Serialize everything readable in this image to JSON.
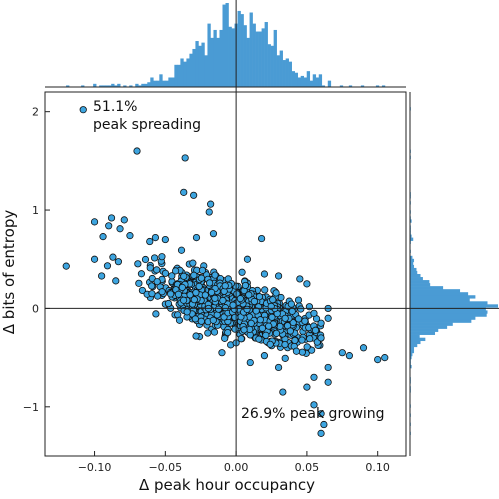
{
  "chart_data": {
    "type": "scatter",
    "xlabel": "Δ peak hour occupancy",
    "ylabel": "Δ bits of entropy",
    "xlim": [
      -0.135,
      0.12
    ],
    "ylim": [
      -1.5,
      2.2
    ],
    "xticks": [
      -0.1,
      -0.05,
      0.0,
      0.05,
      0.1
    ],
    "xtick_labels": [
      "−0.10",
      "−0.05",
      "0.00",
      "0.05",
      "0.10"
    ],
    "yticks": [
      -1,
      0,
      1,
      2
    ],
    "ytick_labels": [
      "−1",
      "0",
      "1",
      "2"
    ],
    "annotations": [
      {
        "lines": [
          "51.1%",
          "peak spreading"
        ]
      },
      {
        "lines": [
          "26.9% peak growing"
        ]
      }
    ],
    "grid": false,
    "reference_lines": {
      "x": 0,
      "y": 0
    },
    "colors": {
      "point_fill": "#3da5e0",
      "point_edge": "#111111",
      "histogram": "#4a9bd4"
    },
    "marginal_histograms": {
      "top": "x distribution",
      "right": "y distribution"
    },
    "points": [
      [
        -0.108,
        2.02
      ],
      [
        -0.07,
        1.6
      ],
      [
        -0.036,
        1.53
      ],
      [
        -0.037,
        1.18
      ],
      [
        -0.03,
        1.15
      ],
      [
        -0.018,
        1.06
      ],
      [
        -0.019,
        0.98
      ],
      [
        -0.016,
        0.76
      ],
      [
        -0.1,
        0.88
      ],
      [
        -0.09,
        0.84
      ],
      [
        -0.088,
        0.92
      ],
      [
        -0.079,
        0.9
      ],
      [
        -0.082,
        0.81
      ],
      [
        -0.094,
        0.73
      ],
      [
        -0.075,
        0.74
      ],
      [
        -0.061,
        0.68
      ],
      [
        -0.057,
        0.72
      ],
      [
        -0.05,
        0.7
      ],
      [
        -0.028,
        0.72
      ],
      [
        0.018,
        0.71
      ],
      [
        -0.12,
        0.43
      ],
      [
        -0.1,
        0.5
      ],
      [
        -0.095,
        0.33
      ],
      [
        -0.085,
        0.28
      ],
      [
        0.008,
        0.5
      ],
      [
        0.02,
        0.35
      ],
      [
        0.03,
        0.33
      ],
      [
        0.045,
        0.3
      ],
      [
        0.05,
        0.25
      ],
      [
        0.055,
        -0.05
      ],
      [
        0.06,
        -0.15
      ],
      [
        0.065,
        -0.1
      ],
      [
        0.065,
        0.0
      ],
      [
        0.06,
        -0.3
      ],
      [
        0.075,
        -0.45
      ],
      [
        0.08,
        -0.48
      ],
      [
        0.09,
        -0.4
      ],
      [
        0.1,
        -0.52
      ],
      [
        0.105,
        -0.5
      ],
      [
        0.065,
        -0.6
      ],
      [
        0.055,
        -0.7
      ],
      [
        0.05,
        -0.8
      ],
      [
        0.033,
        -0.85
      ],
      [
        0.065,
        -0.75
      ],
      [
        0.03,
        -0.6
      ],
      [
        0.055,
        -0.98
      ],
      [
        0.06,
        -1.07
      ],
      [
        0.062,
        -1.18
      ],
      [
        0.06,
        -1.27
      ],
      [
        0.02,
        -0.48
      ],
      [
        0.0,
        -0.35
      ],
      [
        -0.02,
        -0.25
      ],
      [
        -0.04,
        -0.12
      ],
      [
        -0.01,
        -0.45
      ],
      [
        0.01,
        -0.55
      ]
    ]
  }
}
